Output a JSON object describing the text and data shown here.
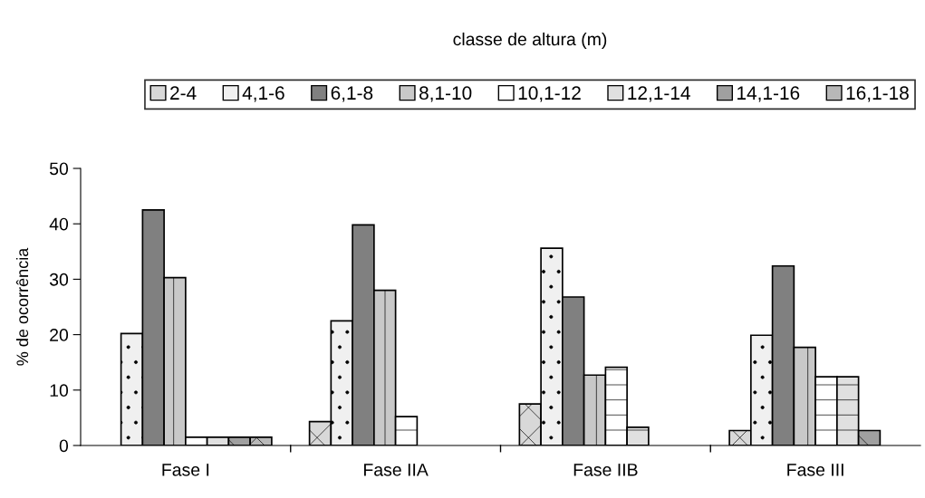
{
  "chart_data": {
    "type": "bar",
    "legend_title": "classe de altura (m)",
    "ylabel": "% de ocorrência",
    "categories": [
      "Fase I",
      "Fase IIA",
      "Fase IIB",
      "Fase III"
    ],
    "series": [
      {
        "name": "2-4",
        "color": "#d8d8d8",
        "values": [
          0,
          4.3,
          7.5,
          2.7
        ]
      },
      {
        "name": "4,1-6",
        "color": "#f0f0f0",
        "values": [
          20.2,
          22.5,
          35.6,
          19.9
        ]
      },
      {
        "name": "6,1-8",
        "color": "#808080",
        "values": [
          42.5,
          39.8,
          26.8,
          32.4
        ]
      },
      {
        "name": "8,1-10",
        "color": "#c8c8c8",
        "values": [
          30.3,
          28.0,
          12.7,
          17.7
        ]
      },
      {
        "name": "10,1-12",
        "color": "#ffffff",
        "values": [
          1.5,
          5.2,
          14.1,
          12.4
        ]
      },
      {
        "name": "12,1-14",
        "color": "#e0e0e0",
        "values": [
          1.5,
          0,
          3.3,
          12.4
        ]
      },
      {
        "name": "14,1-16",
        "color": "#a0a0a0",
        "values": [
          1.5,
          0,
          0,
          2.7
        ]
      },
      {
        "name": "16,1-18",
        "color": "#b8b8b8",
        "values": [
          1.5,
          0,
          0,
          0
        ]
      }
    ],
    "ylim": [
      0,
      50
    ],
    "yticks": [
      0,
      10,
      20,
      30,
      40,
      50
    ],
    "grid": false,
    "legend": "top"
  }
}
